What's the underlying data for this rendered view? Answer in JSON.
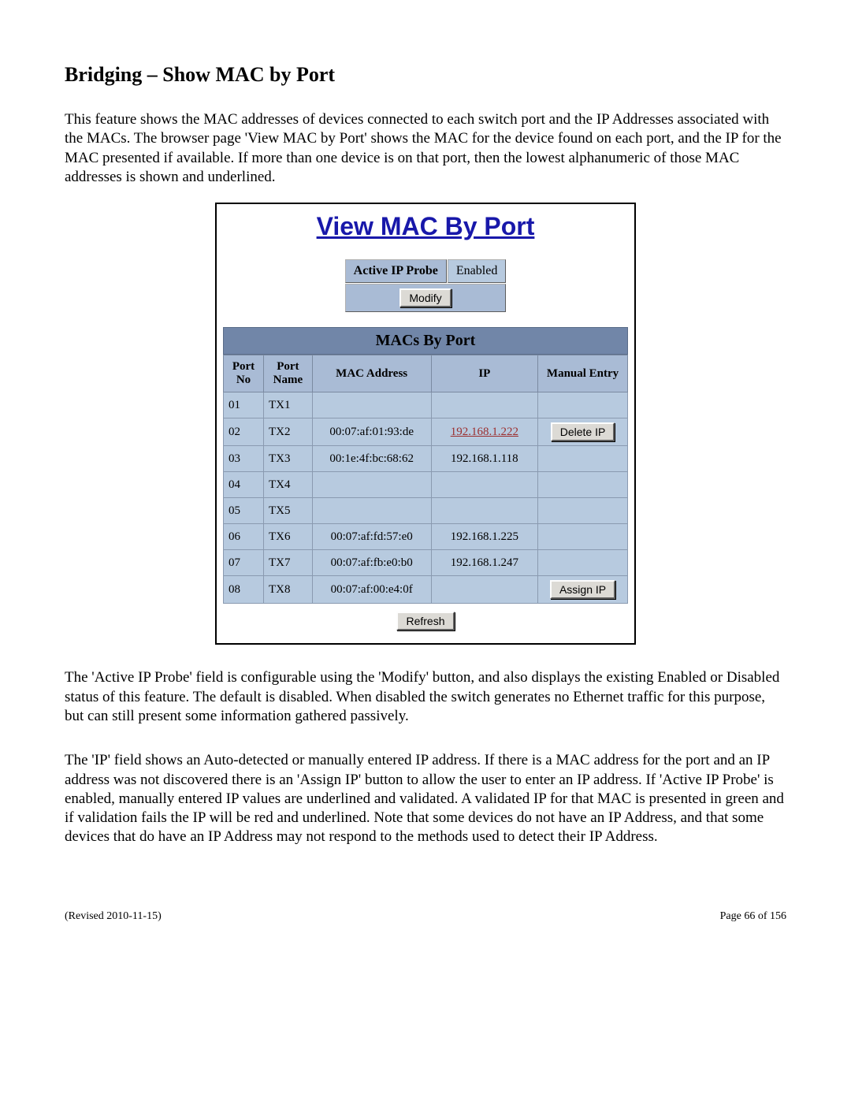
{
  "heading": "Bridging – Show MAC by Port",
  "para1": "This feature shows the MAC addresses of devices connected to each switch port and the IP Addresses associated with the MACs.  The browser page 'View MAC by Port' shows the MAC for the device found on each port, and the IP for the MAC presented if available. If more than one device is on that port, then the lowest alphanumeric of those MAC addresses is shown and underlined.",
  "screenshot": {
    "title": "View MAC By Port",
    "probe_label": "Active IP Probe",
    "probe_value": "Enabled",
    "modify_btn": "Modify",
    "section_title": "MACs By Port",
    "columns": {
      "port_no": "Port No",
      "port_name": "Port Name",
      "mac": "MAC Address",
      "ip": "IP",
      "manual": "Manual Entry"
    },
    "rows": [
      {
        "no": "01",
        "name": "TX1",
        "mac": "",
        "ip": "",
        "ip_link": false,
        "action": ""
      },
      {
        "no": "02",
        "name": "TX2",
        "mac": "00:07:af:01:93:de",
        "ip": "192.168.1.222",
        "ip_link": true,
        "action": "Delete IP"
      },
      {
        "no": "03",
        "name": "TX3",
        "mac": "00:1e:4f:bc:68:62",
        "ip": "192.168.1.118",
        "ip_link": false,
        "action": ""
      },
      {
        "no": "04",
        "name": "TX4",
        "mac": "",
        "ip": "",
        "ip_link": false,
        "action": ""
      },
      {
        "no": "05",
        "name": "TX5",
        "mac": "",
        "ip": "",
        "ip_link": false,
        "action": ""
      },
      {
        "no": "06",
        "name": "TX6",
        "mac": "00:07:af:fd:57:e0",
        "ip": "192.168.1.225",
        "ip_link": false,
        "action": ""
      },
      {
        "no": "07",
        "name": "TX7",
        "mac": "00:07:af:fb:e0:b0",
        "ip": "192.168.1.247",
        "ip_link": false,
        "action": ""
      },
      {
        "no": "08",
        "name": "TX8",
        "mac": "00:07:af:00:e4:0f",
        "ip": "",
        "ip_link": false,
        "action": "Assign IP"
      }
    ],
    "refresh_btn": "Refresh"
  },
  "para2": "The 'Active IP Probe' field is configurable using the 'Modify' button, and also displays the existing Enabled or Disabled status of this feature. The default is disabled. When disabled the switch generates no Ethernet traffic for this purpose, but can still present some information gathered passively.",
  "para3": "The 'IP' field shows an Auto-detected or manually entered IP address. If there is a MAC address for the port and an IP address was not discovered there is an 'Assign IP' button to allow the user to enter an IP address. If 'Active IP Probe' is enabled, manually entered IP values are underlined and validated. A validated IP for that MAC is presented in green and if validation fails the IP will be red and underlined. Note that some devices do not have an IP Address, and that some devices that do have an IP Address may not respond to the methods used to detect their IP Address.",
  "footer_left": "(Revised 2010-11-15)",
  "footer_right": "Page 66 of 156"
}
